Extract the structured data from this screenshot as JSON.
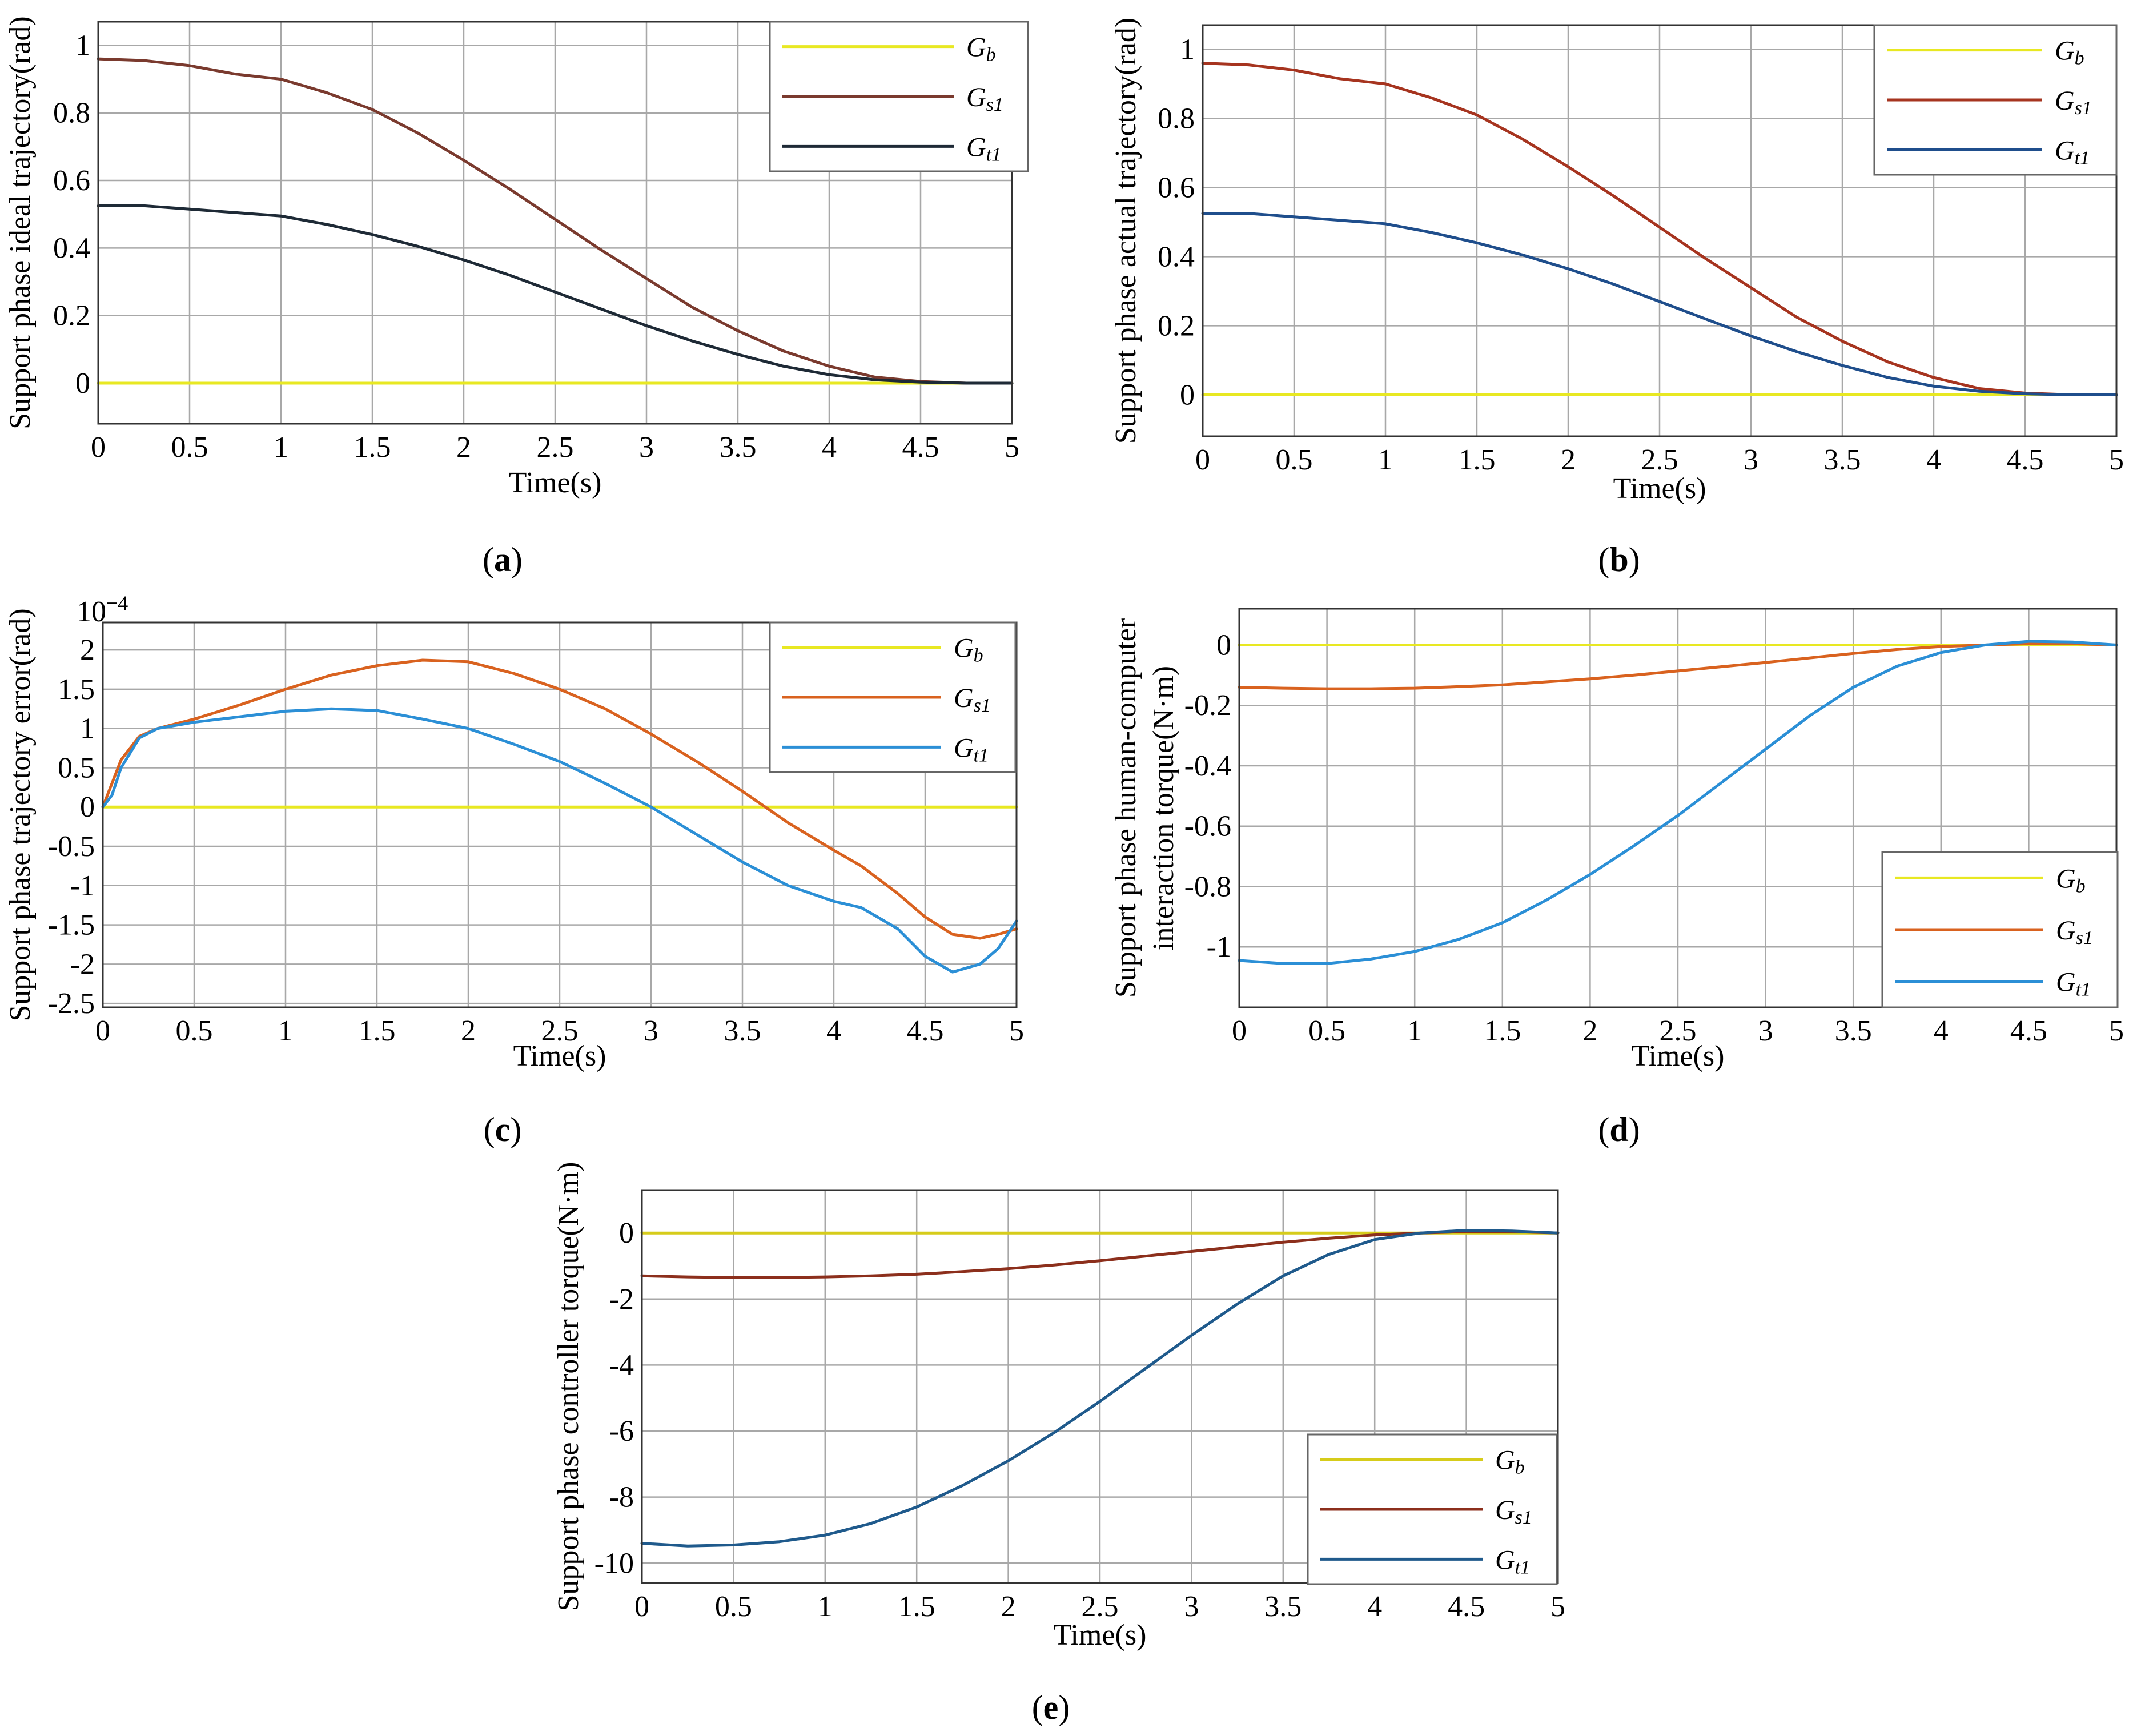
{
  "chart_data": [
    {
      "panel": "(a)",
      "type": "line",
      "title": "",
      "xlabel": "Time(s)",
      "ylabel": "Support phase ideal trajectory(rad)",
      "xlim": [
        0,
        5
      ],
      "ylim": [
        -0.12,
        1.07
      ],
      "xticks": [
        0,
        0.5,
        1,
        1.5,
        2,
        2.5,
        3,
        3.5,
        4,
        4.5,
        5
      ],
      "xtick_labels": [
        "0",
        "0.5",
        "1",
        "1.5",
        "2",
        "2.5",
        "3",
        "3.5",
        "4",
        "4.5",
        "5"
      ],
      "yticks": [
        0,
        0.2,
        0.4,
        0.6,
        0.8,
        1
      ],
      "ytick_labels": [
        "0",
        "0.2",
        "0.4",
        "0.6",
        "0.8",
        "1"
      ],
      "grid": true,
      "legend": "top-right",
      "x": [
        0,
        0.25,
        0.5,
        0.75,
        1,
        1.25,
        1.5,
        1.75,
        2,
        2.25,
        2.5,
        2.75,
        3,
        3.25,
        3.5,
        3.75,
        4,
        4.25,
        4.5,
        4.75,
        5
      ],
      "series": [
        {
          "name": "G",
          "sub": "b",
          "color": "#e8e822",
          "values": [
            0,
            0,
            0,
            0,
            0,
            0,
            0,
            0,
            0,
            0,
            0,
            0,
            0,
            0,
            0,
            0,
            0,
            0,
            0,
            0,
            0
          ]
        },
        {
          "name": "G",
          "sub": "s1",
          "color": "#7a3a2e",
          "values": [
            0.96,
            0.955,
            0.94,
            0.915,
            0.9,
            0.86,
            0.81,
            0.74,
            0.66,
            0.575,
            0.485,
            0.395,
            0.31,
            0.225,
            0.155,
            0.095,
            0.05,
            0.018,
            0.005,
            0.0,
            0.0
          ]
        },
        {
          "name": "G",
          "sub": "t1",
          "color": "#1e2a36",
          "values": [
            0.525,
            0.525,
            0.515,
            0.505,
            0.495,
            0.47,
            0.44,
            0.405,
            0.365,
            0.32,
            0.27,
            0.22,
            0.17,
            0.125,
            0.085,
            0.05,
            0.025,
            0.01,
            0.003,
            0.0,
            0.0
          ]
        }
      ]
    },
    {
      "panel": "(b)",
      "type": "line",
      "title": "",
      "xlabel": "Time(s)",
      "ylabel": "Support phase actual trajectory(rad)",
      "xlim": [
        0,
        5
      ],
      "ylim": [
        -0.12,
        1.07
      ],
      "xticks": [
        0,
        0.5,
        1,
        1.5,
        2,
        2.5,
        3,
        3.5,
        4,
        4.5,
        5
      ],
      "xtick_labels": [
        "0",
        "0.5",
        "1",
        "1.5",
        "2",
        "2.5",
        "3",
        "3.5",
        "4",
        "4.5",
        "5"
      ],
      "yticks": [
        0,
        0.2,
        0.4,
        0.6,
        0.8,
        1
      ],
      "ytick_labels": [
        "0",
        "0.2",
        "0.4",
        "0.6",
        "0.8",
        "1"
      ],
      "grid": true,
      "legend": "top-right",
      "x": [
        0,
        0.25,
        0.5,
        0.75,
        1,
        1.25,
        1.5,
        1.75,
        2,
        2.25,
        2.5,
        2.75,
        3,
        3.25,
        3.5,
        3.75,
        4,
        4.25,
        4.5,
        4.75,
        5
      ],
      "series": [
        {
          "name": "G",
          "sub": "b",
          "color": "#e8e822",
          "values": [
            0,
            0,
            0,
            0,
            0,
            0,
            0,
            0,
            0,
            0,
            0,
            0,
            0,
            0,
            0,
            0,
            0,
            0,
            0,
            0,
            0
          ]
        },
        {
          "name": "G",
          "sub": "s1",
          "color": "#a6341f",
          "values": [
            0.96,
            0.955,
            0.94,
            0.915,
            0.9,
            0.86,
            0.81,
            0.74,
            0.66,
            0.575,
            0.485,
            0.395,
            0.31,
            0.225,
            0.155,
            0.095,
            0.05,
            0.018,
            0.005,
            0.0,
            0.0
          ]
        },
        {
          "name": "G",
          "sub": "t1",
          "color": "#1f4e8c",
          "values": [
            0.525,
            0.525,
            0.515,
            0.505,
            0.495,
            0.47,
            0.44,
            0.405,
            0.365,
            0.32,
            0.27,
            0.22,
            0.17,
            0.125,
            0.085,
            0.05,
            0.025,
            0.01,
            0.003,
            0.0,
            0.0
          ]
        }
      ]
    },
    {
      "panel": "(c)",
      "type": "line",
      "title": "",
      "xlabel": "Time(s)",
      "ylabel": "Support phase trajectory error(rad)",
      "multiplier": "10",
      "multiplier_exp": "−4",
      "xlim": [
        0,
        5
      ],
      "ylim": [
        -2.55,
        2.35
      ],
      "xticks": [
        0,
        0.5,
        1,
        1.5,
        2,
        2.5,
        3,
        3.5,
        4,
        4.5,
        5
      ],
      "xtick_labels": [
        "0",
        "0.5",
        "1",
        "1.5",
        "2",
        "2.5",
        "3",
        "3.5",
        "4",
        "4.5",
        "5"
      ],
      "yticks": [
        -2.5,
        -2,
        -1.5,
        -1,
        -0.5,
        0,
        0.5,
        1,
        1.5,
        2
      ],
      "ytick_labels": [
        "-2.5",
        "-2",
        "-1.5",
        "-1",
        "-0.5",
        "0",
        "0.5",
        "1",
        "1.5",
        "2"
      ],
      "grid": true,
      "legend": "top-right",
      "x": [
        0,
        0.05,
        0.1,
        0.2,
        0.3,
        0.5,
        0.75,
        1,
        1.25,
        1.5,
        1.75,
        2,
        2.25,
        2.5,
        2.75,
        3,
        3.25,
        3.5,
        3.75,
        4,
        4.15,
        4.35,
        4.5,
        4.65,
        4.8,
        4.9,
        5
      ],
      "series": [
        {
          "name": "G",
          "sub": "b",
          "color": "#e8e822",
          "values": [
            0,
            0,
            0,
            0,
            0,
            0,
            0,
            0,
            0,
            0,
            0,
            0,
            0,
            0,
            0,
            0,
            0,
            0,
            0,
            0,
            0,
            0,
            0,
            0,
            0,
            0,
            0
          ]
        },
        {
          "name": "G",
          "sub": "s1",
          "color": "#d9621f",
          "values": [
            0,
            0.3,
            0.6,
            0.9,
            1.0,
            1.12,
            1.3,
            1.5,
            1.68,
            1.8,
            1.87,
            1.85,
            1.7,
            1.5,
            1.25,
            0.93,
            0.58,
            0.2,
            -0.2,
            -0.55,
            -0.75,
            -1.1,
            -1.4,
            -1.62,
            -1.67,
            -1.62,
            -1.55
          ]
        },
        {
          "name": "G",
          "sub": "t1",
          "color": "#2b8fd6",
          "values": [
            0,
            0.15,
            0.5,
            0.88,
            1.0,
            1.08,
            1.15,
            1.22,
            1.25,
            1.23,
            1.12,
            1.0,
            0.8,
            0.58,
            0.3,
            0.0,
            -0.35,
            -0.7,
            -1.0,
            -1.2,
            -1.28,
            -1.55,
            -1.9,
            -2.1,
            -2.0,
            -1.8,
            -1.45
          ]
        }
      ]
    },
    {
      "panel": "(d)",
      "type": "line",
      "title": "",
      "xlabel": "Time(s)",
      "ylabel": "Support phase human-computer",
      "ylabel2": "interaction torque(N·m)",
      "xlim": [
        0,
        5
      ],
      "ylim": [
        -1.2,
        0.12
      ],
      "xticks": [
        0,
        0.5,
        1,
        1.5,
        2,
        2.5,
        3,
        3.5,
        4,
        4.5,
        5
      ],
      "xtick_labels": [
        "0",
        "0.5",
        "1",
        "1.5",
        "2",
        "2.5",
        "3",
        "3.5",
        "4",
        "4.5",
        "5"
      ],
      "yticks": [
        -1,
        -0.8,
        -0.6,
        -0.4,
        -0.2,
        0
      ],
      "ytick_labels": [
        "-1",
        "-0.8",
        "-0.6",
        "-0.4",
        "-0.2",
        "0"
      ],
      "grid": true,
      "legend": "bottom-right",
      "x": [
        0,
        0.25,
        0.5,
        0.75,
        1,
        1.25,
        1.5,
        1.75,
        2,
        2.25,
        2.5,
        2.75,
        3,
        3.25,
        3.5,
        3.75,
        4,
        4.25,
        4.5,
        4.75,
        5
      ],
      "series": [
        {
          "name": "G",
          "sub": "b",
          "color": "#e8e822",
          "values": [
            0,
            0,
            0,
            0,
            0,
            0,
            0,
            0,
            0,
            0,
            0,
            0,
            0,
            0,
            0,
            0,
            0,
            0,
            0,
            0,
            0
          ]
        },
        {
          "name": "G",
          "sub": "s1",
          "color": "#d9621f",
          "values": [
            -0.14,
            -0.143,
            -0.145,
            -0.145,
            -0.143,
            -0.138,
            -0.132,
            -0.122,
            -0.112,
            -0.1,
            -0.086,
            -0.072,
            -0.058,
            -0.043,
            -0.028,
            -0.015,
            -0.005,
            0.0,
            0.004,
            0.004,
            0.0
          ]
        },
        {
          "name": "G",
          "sub": "t1",
          "color": "#2b8fd6",
          "values": [
            -1.045,
            -1.055,
            -1.055,
            -1.04,
            -1.015,
            -0.975,
            -0.92,
            -0.845,
            -0.76,
            -0.665,
            -0.565,
            -0.455,
            -0.345,
            -0.235,
            -0.14,
            -0.07,
            -0.025,
            0.0,
            0.012,
            0.01,
            0.0
          ]
        }
      ]
    },
    {
      "panel": "(e)",
      "type": "line",
      "title": "",
      "xlabel": "Time(s)",
      "ylabel": "Support phase controller torque(N·m)",
      "xlim": [
        0,
        5
      ],
      "ylim": [
        -10.6,
        1.3
      ],
      "xticks": [
        0,
        0.5,
        1,
        1.5,
        2,
        2.5,
        3,
        3.5,
        4,
        4.5,
        5
      ],
      "xtick_labels": [
        "0",
        "0.5",
        "1",
        "1.5",
        "2",
        "2.5",
        "3",
        "3.5",
        "4",
        "4.5",
        "5"
      ],
      "yticks": [
        -10,
        -8,
        -6,
        -4,
        -2,
        0
      ],
      "ytick_labels": [
        "-10",
        "-8",
        "-6",
        "-4",
        "-2",
        "0"
      ],
      "grid": true,
      "legend": "bottom-right",
      "x": [
        0,
        0.25,
        0.5,
        0.75,
        1,
        1.25,
        1.5,
        1.75,
        2,
        2.25,
        2.5,
        2.75,
        3,
        3.25,
        3.5,
        3.75,
        4,
        4.25,
        4.5,
        4.75,
        5
      ],
      "series": [
        {
          "name": "G",
          "sub": "b",
          "color": "#d6cc1a",
          "values": [
            0,
            0,
            0,
            0,
            0,
            0,
            0,
            0,
            0,
            0,
            0,
            0,
            0,
            0,
            0,
            0,
            0,
            0,
            0,
            0,
            0
          ]
        },
        {
          "name": "G",
          "sub": "s1",
          "color": "#8c2f1c",
          "values": [
            -1.3,
            -1.33,
            -1.35,
            -1.35,
            -1.33,
            -1.3,
            -1.25,
            -1.17,
            -1.08,
            -0.97,
            -0.84,
            -0.7,
            -0.56,
            -0.42,
            -0.28,
            -0.16,
            -0.06,
            0.0,
            0.04,
            0.04,
            0.0
          ]
        },
        {
          "name": "G",
          "sub": "t1",
          "color": "#1f5a8c",
          "values": [
            -9.4,
            -9.48,
            -9.45,
            -9.35,
            -9.15,
            -8.8,
            -8.3,
            -7.65,
            -6.9,
            -6.05,
            -5.1,
            -4.1,
            -3.1,
            -2.15,
            -1.3,
            -0.65,
            -0.2,
            0.0,
            0.08,
            0.06,
            0.0
          ]
        }
      ]
    }
  ],
  "captions": [
    "(a)",
    "(b)",
    "(c)",
    "(d)",
    "(e)"
  ]
}
